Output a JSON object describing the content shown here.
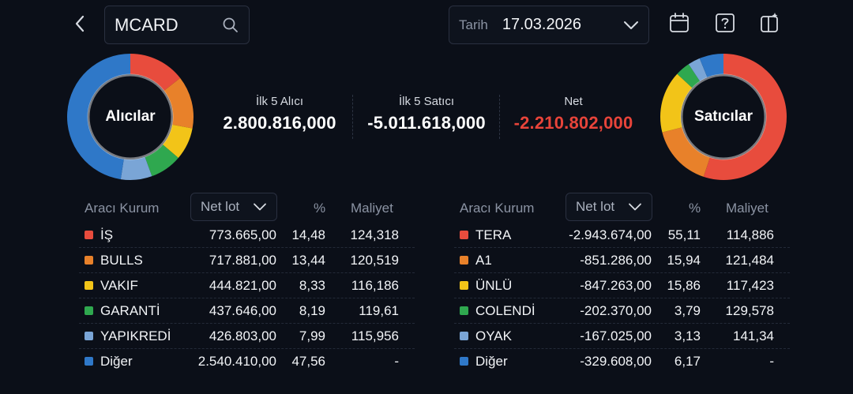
{
  "search": {
    "value": "MCARD"
  },
  "date": {
    "label": "Tarih",
    "value": "17.03.2026"
  },
  "summary": {
    "buyers_title": "İlk 5 Alıcı",
    "buyers_value": "2.800.816,000",
    "sellers_title": "İlk 5 Satıcı",
    "sellers_value": "-5.011.618,000",
    "net_title": "Net",
    "net_value": "-2.210.802,000"
  },
  "colors": {
    "red": "#e84c3d",
    "orange": "#e8812a",
    "yellow": "#f2c418",
    "green": "#2fa84f",
    "lightblue": "#7aa5d6",
    "blue": "#2f78c8",
    "neg": "#e8443a"
  },
  "buyers_chart": {
    "label": "Alıcılar",
    "shares": [
      14.48,
      13.44,
      8.33,
      8.19,
      7.99,
      47.56
    ]
  },
  "sellers_chart": {
    "label": "Satıcılar",
    "shares": [
      55.11,
      15.94,
      15.86,
      3.79,
      3.13,
      6.17
    ]
  },
  "buyers": {
    "headers": {
      "broker": "Aracı Kurum",
      "select": "Net lot",
      "pct": "%",
      "cost": "Maliyet"
    },
    "rows": [
      {
        "name": "İŞ",
        "lot": "773.665,00",
        "pct": "14,48",
        "cost": "124,318",
        "color": "#e84c3d"
      },
      {
        "name": "BULLS",
        "lot": "717.881,00",
        "pct": "13,44",
        "cost": "120,519",
        "color": "#e8812a"
      },
      {
        "name": "VAKIF",
        "lot": "444.821,00",
        "pct": "8,33",
        "cost": "116,186",
        "color": "#f2c418"
      },
      {
        "name": "GARANTİ",
        "lot": "437.646,00",
        "pct": "8,19",
        "cost": "119,61",
        "color": "#2fa84f"
      },
      {
        "name": "YAPIKREDİ",
        "lot": "426.803,00",
        "pct": "7,99",
        "cost": "115,956",
        "color": "#7aa5d6"
      },
      {
        "name": "Diğer",
        "lot": "2.540.410,00",
        "pct": "47,56",
        "cost": "-",
        "color": "#2f78c8"
      }
    ]
  },
  "sellers": {
    "headers": {
      "broker": "Aracı Kurum",
      "select": "Net lot",
      "pct": "%",
      "cost": "Maliyet"
    },
    "rows": [
      {
        "name": "TERA",
        "lot": "-2.943.674,00",
        "pct": "55,11",
        "cost": "114,886",
        "color": "#e84c3d"
      },
      {
        "name": "A1",
        "lot": "-851.286,00",
        "pct": "15,94",
        "cost": "121,484",
        "color": "#e8812a"
      },
      {
        "name": "ÜNLÜ",
        "lot": "-847.263,00",
        "pct": "15,86",
        "cost": "117,423",
        "color": "#f2c418"
      },
      {
        "name": "COLENDİ",
        "lot": "-202.370,00",
        "pct": "3,79",
        "cost": "129,578",
        "color": "#2fa84f"
      },
      {
        "name": "OYAK",
        "lot": "-167.025,00",
        "pct": "3,13",
        "cost": "141,34",
        "color": "#7aa5d6"
      },
      {
        "name": "Diğer",
        "lot": "-329.608,00",
        "pct": "6,17",
        "cost": "-",
        "color": "#2f78c8"
      }
    ]
  }
}
